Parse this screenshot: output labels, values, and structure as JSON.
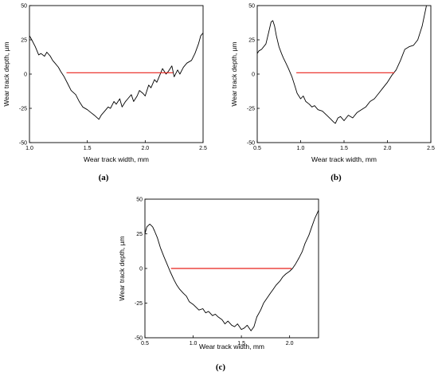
{
  "figure": {
    "colors": {
      "profile": "#000000",
      "reference": "#e8201a",
      "axis": "#000000"
    }
  },
  "chart_data": [
    {
      "type": "line",
      "panel_label": "(a)",
      "xlabel": "Wear track width, mm",
      "ylabel": "Wear track depth, µm",
      "xlim": [
        1.0,
        2.5
      ],
      "ylim": [
        -50,
        50
      ],
      "xticks": [
        1.0,
        1.5,
        2.0,
        2.5
      ],
      "xtick_labels": [
        "1.0",
        "1.5",
        "2.0",
        "2.5"
      ],
      "yticks": [
        -50,
        -25,
        0,
        25,
        50
      ],
      "ytick_labels": [
        "-50",
        "-25",
        "0",
        "25",
        "50"
      ],
      "grid": false,
      "series": [
        {
          "role": "profile",
          "x": [
            1.0,
            1.02,
            1.05,
            1.08,
            1.1,
            1.13,
            1.15,
            1.18,
            1.2,
            1.22,
            1.25,
            1.27,
            1.3,
            1.33,
            1.36,
            1.4,
            1.43,
            1.46,
            1.5,
            1.53,
            1.56,
            1.6,
            1.62,
            1.65,
            1.68,
            1.7,
            1.73,
            1.75,
            1.78,
            1.8,
            1.83,
            1.85,
            1.88,
            1.9,
            1.93,
            1.95,
            1.98,
            2.0,
            2.03,
            2.05,
            2.08,
            2.1,
            2.12,
            2.15,
            2.18,
            2.2,
            2.23,
            2.25,
            2.28,
            2.3,
            2.33,
            2.36,
            2.4,
            2.43,
            2.46,
            2.48,
            2.5
          ],
          "y": [
            28,
            25,
            20,
            14,
            15,
            13,
            16,
            13,
            10,
            8,
            5,
            2,
            -2,
            -7,
            -12,
            -15,
            -20,
            -24,
            -26,
            -28,
            -30,
            -33,
            -30,
            -27,
            -24,
            -25,
            -20,
            -22,
            -18,
            -24,
            -20,
            -18,
            -15,
            -20,
            -16,
            -12,
            -14,
            -16,
            -8,
            -10,
            -4,
            -6,
            -2,
            4,
            0,
            2,
            6,
            -2,
            3,
            0,
            5,
            8,
            10,
            15,
            22,
            28,
            30
          ]
        },
        {
          "role": "reference",
          "x": [
            1.32,
            2.24
          ],
          "y": [
            1,
            1
          ]
        }
      ]
    },
    {
      "type": "line",
      "panel_label": "(b)",
      "xlabel": "Wear track width, mm",
      "ylabel": "Wear track depth, µm",
      "xlim": [
        0.5,
        2.5
      ],
      "ylim": [
        -50,
        50
      ],
      "xticks": [
        0.5,
        1.0,
        1.5,
        2.0,
        2.5
      ],
      "xtick_labels": [
        "0.5",
        "1.0",
        "1.5",
        "2.0",
        "2.5"
      ],
      "yticks": [
        -50,
        -25,
        0,
        25,
        50
      ],
      "ytick_labels": [
        "-50",
        "-25",
        "0",
        "25",
        "50"
      ],
      "grid": false,
      "series": [
        {
          "role": "profile",
          "x": [
            0.5,
            0.52,
            0.55,
            0.6,
            0.63,
            0.66,
            0.68,
            0.7,
            0.72,
            0.75,
            0.78,
            0.8,
            0.83,
            0.86,
            0.9,
            0.93,
            0.96,
            1.0,
            1.03,
            1.06,
            1.1,
            1.13,
            1.16,
            1.2,
            1.25,
            1.3,
            1.35,
            1.38,
            1.4,
            1.43,
            1.46,
            1.5,
            1.55,
            1.6,
            1.65,
            1.7,
            1.75,
            1.8,
            1.85,
            1.9,
            1.95,
            2.0,
            2.05,
            2.1,
            2.15,
            2.2,
            2.25,
            2.3,
            2.35,
            2.4,
            2.45
          ],
          "y": [
            15,
            17,
            18,
            22,
            30,
            38,
            39,
            35,
            28,
            20,
            15,
            12,
            8,
            4,
            -2,
            -8,
            -14,
            -18,
            -16,
            -20,
            -22,
            -24,
            -23,
            -26,
            -27,
            -30,
            -33,
            -35,
            -36,
            -32,
            -31,
            -34,
            -30,
            -32,
            -28,
            -26,
            -24,
            -20,
            -18,
            -14,
            -10,
            -6,
            -1,
            3,
            10,
            18,
            20,
            21,
            25,
            35,
            50
          ]
        },
        {
          "role": "reference",
          "x": [
            0.95,
            2.08
          ],
          "y": [
            1,
            1
          ]
        }
      ]
    },
    {
      "type": "line",
      "panel_label": "(c)",
      "xlabel": "Wear track width, mm",
      "ylabel": "Wear track depth, µm",
      "xlim": [
        0.5,
        2.3
      ],
      "ylim": [
        -50,
        50
      ],
      "xticks": [
        0.5,
        1.0,
        1.5,
        2.0
      ],
      "xtick_labels": [
        "0.5",
        "1.0",
        "1.5",
        "2.0"
      ],
      "yticks": [
        -50,
        -25,
        0,
        25,
        50
      ],
      "ytick_labels": [
        "-50",
        "-25",
        "0",
        "25",
        "50"
      ],
      "grid": false,
      "series": [
        {
          "role": "profile",
          "x": [
            0.5,
            0.52,
            0.55,
            0.58,
            0.6,
            0.63,
            0.66,
            0.7,
            0.73,
            0.76,
            0.8,
            0.83,
            0.86,
            0.9,
            0.93,
            0.96,
            1.0,
            1.03,
            1.06,
            1.1,
            1.13,
            1.16,
            1.2,
            1.23,
            1.26,
            1.3,
            1.33,
            1.36,
            1.4,
            1.43,
            1.46,
            1.5,
            1.53,
            1.56,
            1.6,
            1.63,
            1.66,
            1.7,
            1.73,
            1.76,
            1.8,
            1.83,
            1.86,
            1.9,
            1.93,
            1.96,
            2.0,
            2.03,
            2.06,
            2.1,
            2.13,
            2.16,
            2.2,
            2.23,
            2.26,
            2.3
          ],
          "y": [
            25,
            30,
            32,
            30,
            27,
            22,
            15,
            8,
            3,
            -2,
            -8,
            -12,
            -15,
            -18,
            -20,
            -24,
            -26,
            -28,
            -30,
            -29,
            -32,
            -31,
            -34,
            -33,
            -35,
            -37,
            -40,
            -38,
            -41,
            -42,
            -40,
            -44,
            -43,
            -41,
            -45,
            -42,
            -35,
            -30,
            -25,
            -22,
            -18,
            -15,
            -12,
            -9,
            -6,
            -4,
            -2,
            0,
            3,
            8,
            12,
            18,
            24,
            30,
            36,
            42
          ]
        },
        {
          "role": "reference",
          "x": [
            0.77,
            2.02
          ],
          "y": [
            0,
            0
          ]
        }
      ]
    }
  ]
}
